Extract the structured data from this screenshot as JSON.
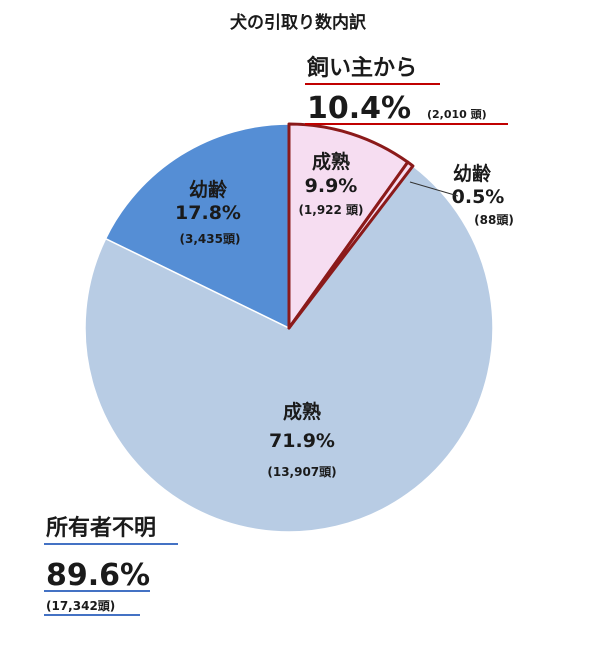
{
  "chart_data": {
    "type": "pie",
    "title": "犬の引取り数内訳",
    "slices": [
      {
        "group": "飼い主から",
        "category": "成熟",
        "percent": 9.9,
        "percent_label": "9.9%",
        "count_label": "(1,922 頭)",
        "color": "#f6ddf1",
        "stroke": "#8b1a1a"
      },
      {
        "group": "飼い主から",
        "category": "幼齢",
        "percent": 0.5,
        "percent_label": "0.5%",
        "count_label": "(88頭)",
        "color": "#f6ddf1",
        "stroke": "#8b1a1a"
      },
      {
        "group": "所有者不明",
        "category": "成熟",
        "percent": 71.9,
        "percent_label": "71.9%",
        "count_label": "(13,907頭)",
        "color": "#b8cce4",
        "stroke": "#ffffff"
      },
      {
        "group": "所有者不明",
        "category": "幼齢",
        "percent": 17.8,
        "percent_label": "17.8%",
        "count_label": "(3,435頭)",
        "color": "#558ed5",
        "stroke": "#ffffff"
      }
    ],
    "groups": [
      {
        "name": "飼い主から",
        "percent_label": "10.4%",
        "count_label": "(2,010 頭)",
        "underline_color": "#c00000"
      },
      {
        "name": "所有者不明",
        "percent_label": "89.6%",
        "count_label": "(17,342頭)",
        "underline_color": "#4472c4"
      }
    ]
  }
}
